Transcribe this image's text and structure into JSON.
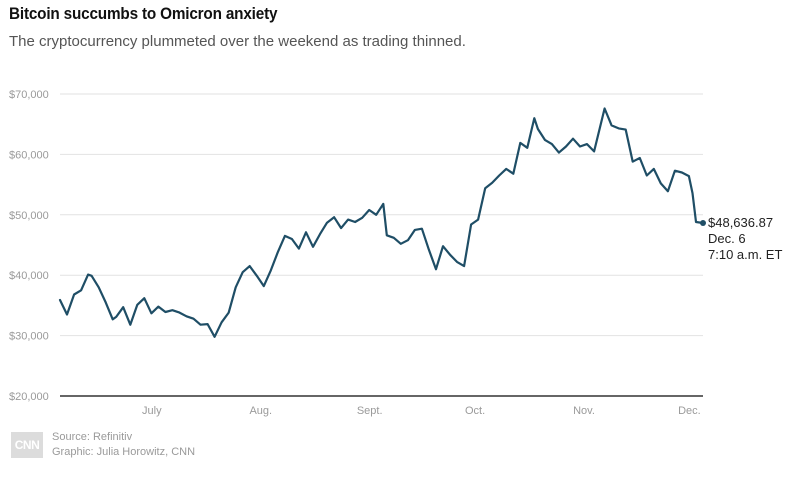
{
  "header": {
    "title": "Bitcoin succumbs to Omicron anxiety",
    "subtitle": "The cryptocurrency plummeted over the weekend as trading thinned."
  },
  "footer": {
    "logo_text": "CNN",
    "source": "Source: Refinitiv",
    "graphic": "Graphic: Julia Horowitz, CNN"
  },
  "colors": {
    "line": "#1f4e66",
    "grid": "#e2e2e2",
    "baseline": "#333333"
  },
  "chart_data": {
    "type": "line",
    "title": "Bitcoin succumbs to Omicron anxiety",
    "subtitle": "The cryptocurrency plummeted over the weekend as trading thinned.",
    "xlabel": "",
    "ylabel": "",
    "ylim": [
      20000,
      70000
    ],
    "y_ticks": [
      20000,
      30000,
      40000,
      50000,
      60000,
      70000
    ],
    "y_tick_labels": [
      "$20,000",
      "$30,000",
      "$40,000",
      "$50,000",
      "$60,000",
      "$70,000"
    ],
    "x_tick_labels": [
      {
        "label": "July",
        "x": "2021-07-01"
      },
      {
        "label": "Aug.",
        "x": "2021-08-01"
      },
      {
        "label": "Sept.",
        "x": "2021-09-01"
      },
      {
        "label": "Oct.",
        "x": "2021-10-01"
      },
      {
        "label": "Nov.",
        "x": "2021-11-01"
      },
      {
        "label": "Dec.",
        "x": "2021-12-01"
      }
    ],
    "xlim": [
      "2021-06-06",
      "2021-12-06"
    ],
    "grid": true,
    "series": [
      {
        "x": [
          "2021-06-06",
          "2021-06-08",
          "2021-06-10",
          "2021-06-12",
          "2021-06-14",
          "2021-06-15",
          "2021-06-17",
          "2021-06-19",
          "2021-06-21",
          "2021-06-22",
          "2021-06-24",
          "2021-06-26",
          "2021-06-28",
          "2021-06-30",
          "2021-07-02",
          "2021-07-04",
          "2021-07-06",
          "2021-07-08",
          "2021-07-10",
          "2021-07-12",
          "2021-07-14",
          "2021-07-16",
          "2021-07-18",
          "2021-07-20",
          "2021-07-22",
          "2021-07-24",
          "2021-07-26",
          "2021-07-28",
          "2021-07-30",
          "2021-08-01",
          "2021-08-03",
          "2021-08-05",
          "2021-08-07",
          "2021-08-09",
          "2021-08-11",
          "2021-08-13",
          "2021-08-15",
          "2021-08-17",
          "2021-08-19",
          "2021-08-21",
          "2021-08-23",
          "2021-08-25",
          "2021-08-27",
          "2021-08-29",
          "2021-08-31",
          "2021-09-02",
          "2021-09-04",
          "2021-09-06",
          "2021-09-07",
          "2021-09-09",
          "2021-09-11",
          "2021-09-13",
          "2021-09-15",
          "2021-09-17",
          "2021-09-19",
          "2021-09-21",
          "2021-09-23",
          "2021-09-25",
          "2021-09-27",
          "2021-09-29",
          "2021-10-01",
          "2021-10-03",
          "2021-10-05",
          "2021-10-07",
          "2021-10-09",
          "2021-10-11",
          "2021-10-13",
          "2021-10-15",
          "2021-10-17",
          "2021-10-19",
          "2021-10-20",
          "2021-10-22",
          "2021-10-24",
          "2021-10-26",
          "2021-10-28",
          "2021-10-30",
          "2021-11-01",
          "2021-11-03",
          "2021-11-05",
          "2021-11-08",
          "2021-11-10",
          "2021-11-12",
          "2021-11-14",
          "2021-11-16",
          "2021-11-18",
          "2021-11-20",
          "2021-11-22",
          "2021-11-24",
          "2021-11-26",
          "2021-11-28",
          "2021-11-30",
          "2021-12-02",
          "2021-12-03",
          "2021-12-04",
          "2021-12-06"
        ],
        "values": [
          35900,
          33500,
          36800,
          37500,
          40100,
          39900,
          38000,
          35500,
          32700,
          33100,
          34700,
          31800,
          35100,
          36200,
          33700,
          34800,
          33900,
          34200,
          33800,
          33200,
          32800,
          31800,
          31900,
          29800,
          32200,
          33800,
          38000,
          40500,
          41500,
          39900,
          38200,
          40800,
          43800,
          46500,
          46000,
          44400,
          47100,
          44700,
          46800,
          48700,
          49600,
          47800,
          49200,
          48800,
          49500,
          50800,
          50000,
          51800,
          46600,
          46200,
          45200,
          45800,
          47500,
          47700,
          44200,
          41000,
          44800,
          43400,
          42200,
          41500,
          48400,
          49200,
          54400,
          55300,
          56500,
          57600,
          56800,
          61900,
          61100,
          66000,
          64200,
          62400,
          61700,
          60300,
          61300,
          62600,
          61300,
          61700,
          60500,
          67600,
          64800,
          64300,
          64100,
          58800,
          59400,
          56500,
          57600,
          55200,
          53900,
          57300,
          57000,
          56400,
          53600,
          48800,
          48636.87
        ]
      }
    ],
    "annotation": {
      "value_label": "$48,636.87",
      "line2": "Dec. 6",
      "line3": "7:10 a.m. ET"
    }
  }
}
